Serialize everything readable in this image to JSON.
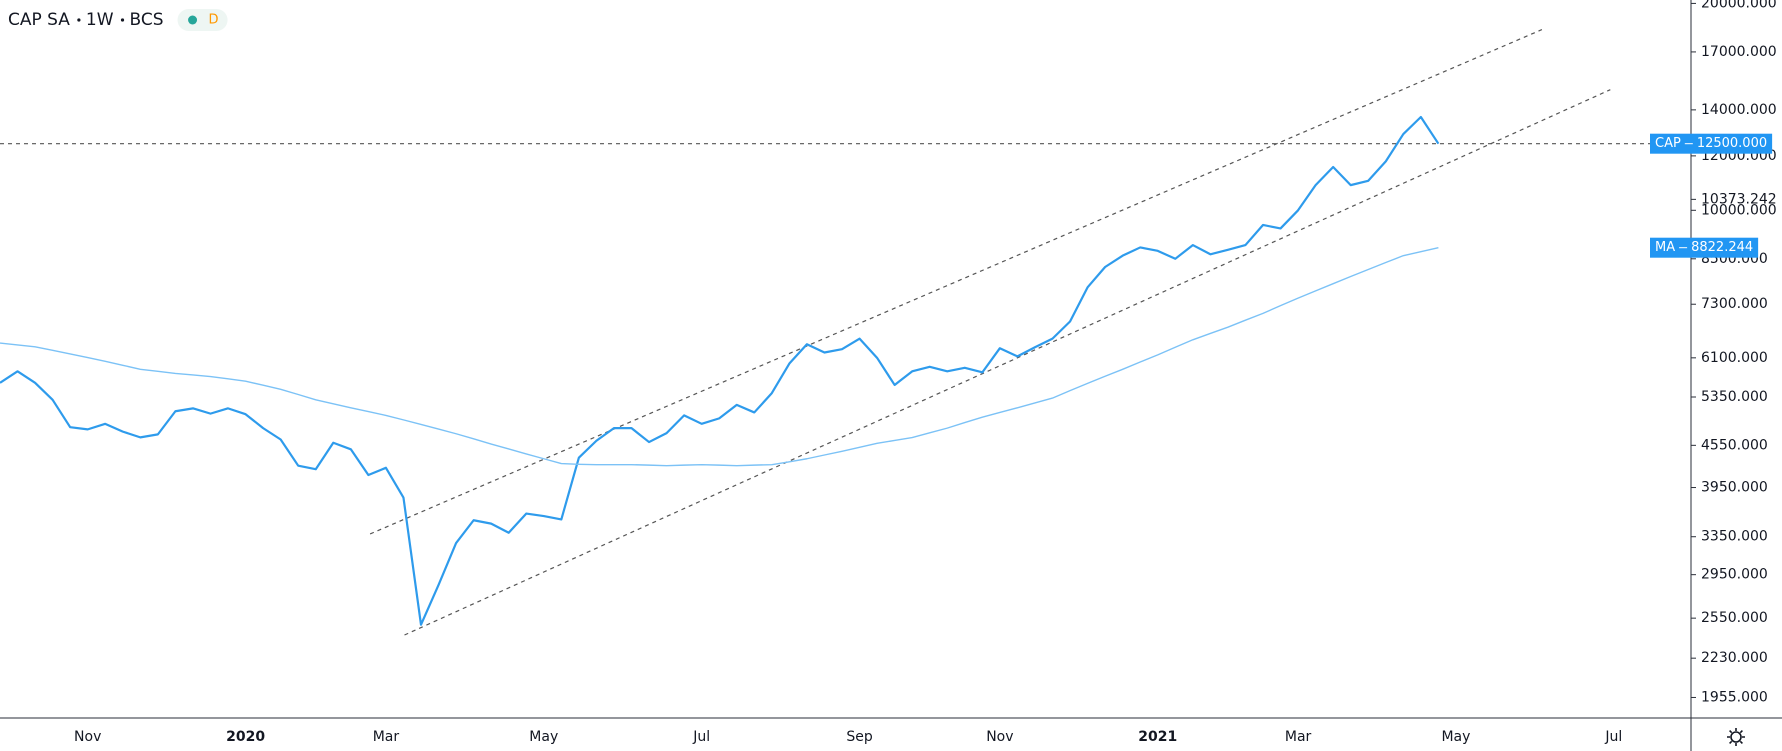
{
  "chart_data": {
    "type": "line",
    "title": "CAP SA",
    "interval": "1W",
    "exchange": "BCS",
    "badge": "D",
    "log_scale": true,
    "grid": false,
    "categories": [
      null,
      null,
      null,
      null,
      null,
      "Nov",
      null,
      null,
      null,
      null,
      null,
      null,
      null,
      null,
      "2020",
      null,
      null,
      null,
      null,
      null,
      null,
      null,
      "Mar",
      null,
      null,
      null,
      null,
      null,
      null,
      null,
      null,
      "May",
      null,
      null,
      null,
      null,
      null,
      null,
      null,
      null,
      "Jul",
      null,
      null,
      null,
      null,
      null,
      null,
      null,
      null,
      "Sep",
      null,
      null,
      null,
      null,
      null,
      null,
      null,
      "Nov",
      null,
      null,
      null,
      null,
      null,
      null,
      null,
      null,
      "2021",
      null,
      null,
      null,
      null,
      null,
      null,
      null,
      "Mar",
      null,
      null,
      null,
      null,
      null,
      null,
      null,
      null,
      "May",
      null,
      null,
      null,
      null,
      null,
      null,
      null,
      null,
      "Jul",
      null,
      null,
      null,
      null
    ],
    "series": [
      {
        "name": "CAP",
        "color": "#2e9bec",
        "width": 2.2,
        "last_label": "12500.000",
        "values": [
          5610,
          5830,
          5610,
          5300,
          4835,
          4800,
          4890,
          4764,
          4673,
          4720,
          5100,
          5150,
          5060,
          5150,
          5050,
          4820,
          4640,
          4250,
          4200,
          4590,
          4490,
          4120,
          4220,
          3820,
          2495,
          2850,
          3280,
          3540,
          3500,
          3395,
          3620,
          3590,
          3550,
          4365,
          4620,
          4820,
          4820,
          4600,
          4740,
          5030,
          4890,
          4980,
          5210,
          5080,
          5420,
          5985,
          6385,
          6210,
          6280,
          6505,
          6100,
          5570,
          5830,
          5920,
          5830,
          5900,
          5810,
          6300,
          6130,
          6320,
          6505,
          6890,
          7725,
          8270,
          8590,
          8830,
          8730,
          8500,
          8900,
          8630,
          8760,
          8900,
          9520,
          9410,
          10000,
          10880,
          11560,
          10880,
          11040,
          11780,
          12910,
          13670,
          12500,
          null,
          null,
          null,
          null,
          null,
          null,
          null,
          null,
          null,
          null,
          null,
          null,
          null,
          null
        ]
      },
      {
        "name": "MA",
        "color": "#7cc2f6",
        "width": 1.4,
        "last_label": "8822.244",
        "values": [
          6410,
          6370,
          6330,
          6255,
          6180,
          6105,
          6030,
          5950,
          5870,
          5830,
          5790,
          5760,
          5730,
          5685,
          5640,
          5565,
          5490,
          5395,
          5300,
          5230,
          5160,
          5095,
          5030,
          4955,
          4880,
          4805,
          4730,
          4650,
          4570,
          4495,
          4420,
          4350,
          4280,
          4270,
          4265,
          4265,
          4265,
          4258,
          4250,
          4258,
          4265,
          4258,
          4250,
          4258,
          4265,
          4305,
          4350,
          4405,
          4460,
          4520,
          4580,
          4625,
          4670,
          4745,
          4820,
          4910,
          5000,
          5080,
          5160,
          5245,
          5330,
          5465,
          5600,
          5735,
          5870,
          6015,
          6160,
          6320,
          6480,
          6620,
          6760,
          6920,
          7080,
          7265,
          7450,
          7635,
          7820,
          8010,
          8200,
          8395,
          8590,
          8705,
          8822.244,
          null,
          null,
          null,
          null,
          null,
          null,
          null,
          null,
          null,
          null,
          null,
          null,
          null,
          null
        ]
      }
    ],
    "trend_lines": [
      {
        "start": [
          21.1,
          3381
        ],
        "end": [
          87.9,
          18320
        ]
      },
      {
        "start": [
          23.06,
          2410
        ],
        "end": [
          91.8,
          14980
        ]
      }
    ],
    "ylim": [
      1825,
      20230
    ],
    "yticks": [
      {
        "value": 20000,
        "label": "20000.000"
      },
      {
        "value": 17000,
        "label": "17000.000"
      },
      {
        "value": 14000,
        "label": "14000.000"
      },
      {
        "value": 12000,
        "label": "12000.000"
      },
      {
        "value": 10373.242,
        "label": "10373.242"
      },
      {
        "value": 10000,
        "label": "10000.000"
      },
      {
        "value": 8500,
        "label": "8500.000"
      },
      {
        "value": 7300,
        "label": "7300.000"
      },
      {
        "value": 6100,
        "label": "6100.000"
      },
      {
        "value": 5350,
        "label": "5350.000"
      },
      {
        "value": 4550,
        "label": "4550.000"
      },
      {
        "value": 3950,
        "label": "3950.000"
      },
      {
        "value": 3350,
        "label": "3350.000"
      },
      {
        "value": 2950,
        "label": "2950.000"
      },
      {
        "value": 2550,
        "label": "2550.000"
      },
      {
        "value": 2230,
        "label": "2230.000"
      },
      {
        "value": 1955,
        "label": "1955.000"
      }
    ]
  }
}
